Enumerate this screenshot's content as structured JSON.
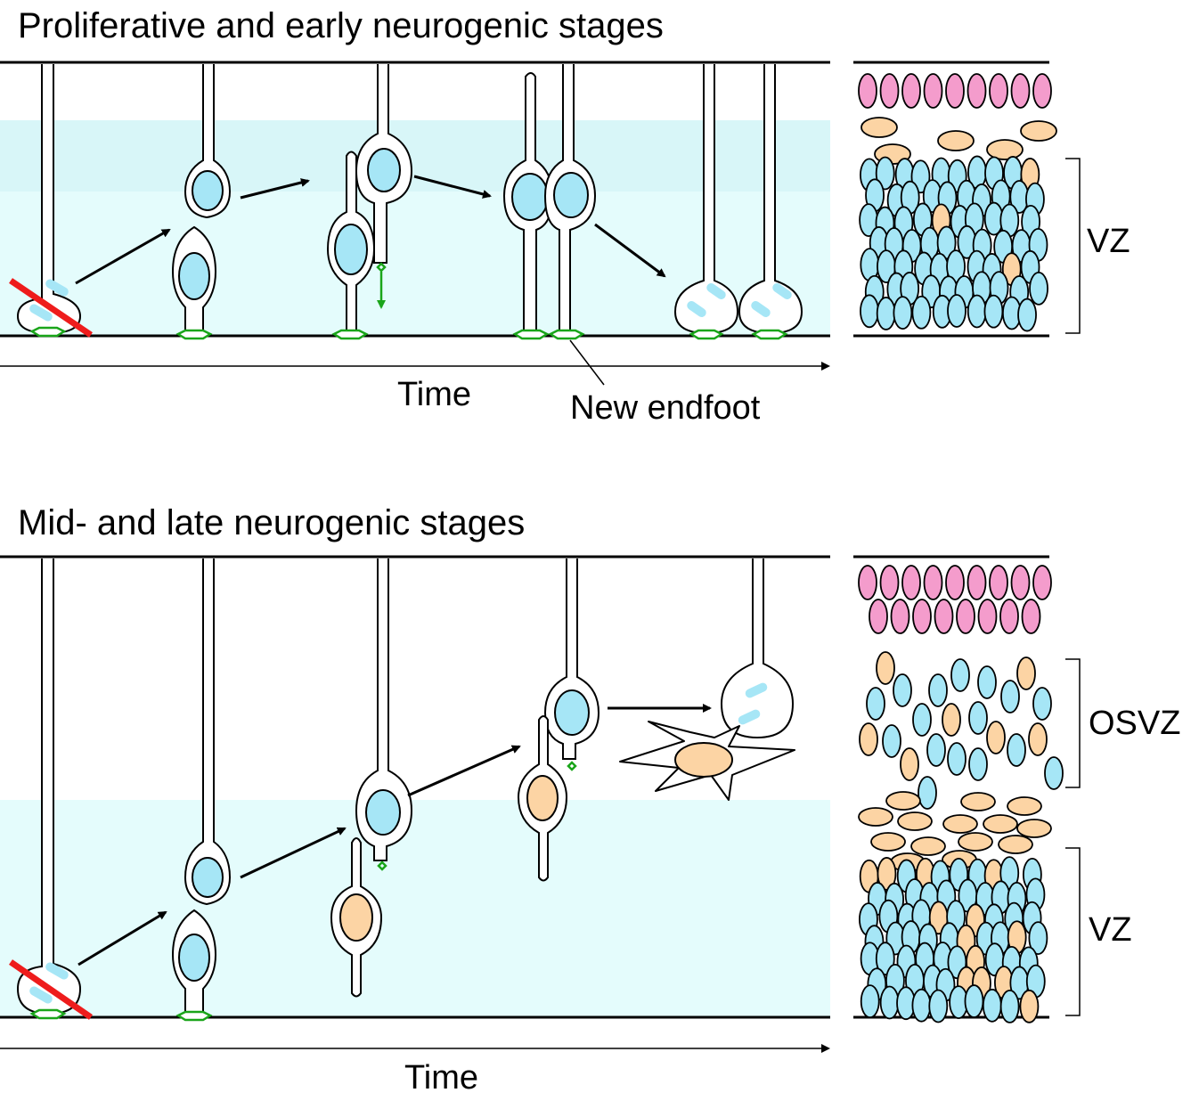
{
  "panels": [
    {
      "title": "Proliferative and early neurogenic stages",
      "axis_label": "Time",
      "annotation": "New endfoot",
      "zones": [
        "VZ"
      ]
    },
    {
      "title": "Mid- and late neurogenic stages",
      "axis_label": "Time",
      "zones": [
        "OSVZ",
        "VZ"
      ]
    }
  ],
  "colors": {
    "progenitor_nucleus": "#a6e6f6",
    "intermediate_nucleus": "#fcd4a4",
    "neuron_nucleus": "#f49ccc",
    "zone_background": "#e4fcfc",
    "zone_band": "#d8f6f8",
    "endfoot": "#1aa51a",
    "cleavage_line": "#ee1c1c"
  }
}
